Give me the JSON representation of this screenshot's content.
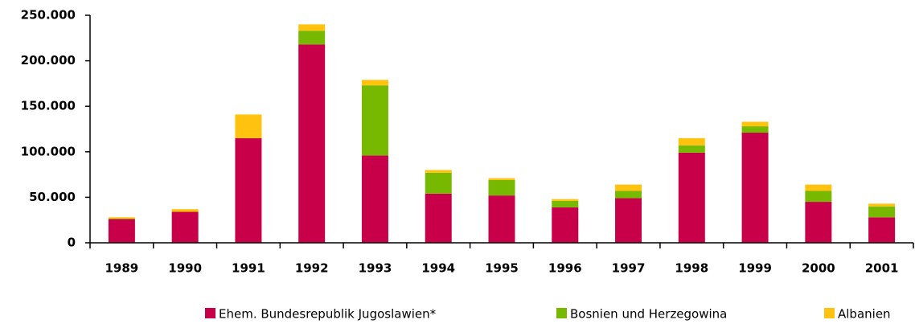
{
  "chart_data": {
    "type": "stacked_bar",
    "categories": [
      "1989",
      "1990",
      "1991",
      "1992",
      "1993",
      "1994",
      "1995",
      "1996",
      "1997",
      "1998",
      "1999",
      "2000",
      "2001"
    ],
    "series": [
      {
        "name": "Ehem. Bundesrepublik Jugoslawien*",
        "color": "#c8004a",
        "values": [
          26000,
          34000,
          115000,
          218000,
          96000,
          54000,
          52000,
          39000,
          49000,
          99000,
          121000,
          45000,
          28000
        ]
      },
      {
        "name": "Bosnien und Herzegowina",
        "color": "#76b900",
        "values": [
          500,
          0,
          0,
          15000,
          77000,
          23000,
          17000,
          7000,
          8000,
          8000,
          7000,
          12000,
          12000
        ]
      },
      {
        "name": "Albanien",
        "color": "#ffc20e",
        "values": [
          1500,
          3000,
          26000,
          7000,
          6000,
          3000,
          2000,
          2000,
          7000,
          8000,
          5000,
          7000,
          3000
        ]
      }
    ],
    "ylim": [
      0,
      250000
    ],
    "yticks": [
      0,
      {
        "value": 50000,
        "label": "50.000"
      },
      {
        "value": 100000,
        "label": "100.000"
      },
      {
        "value": 150000,
        "label": "150.000"
      },
      {
        "value": 200000,
        "label": "200.000"
      },
      {
        "value": 250000,
        "label": "250.000"
      }
    ],
    "legend": "bottom"
  }
}
